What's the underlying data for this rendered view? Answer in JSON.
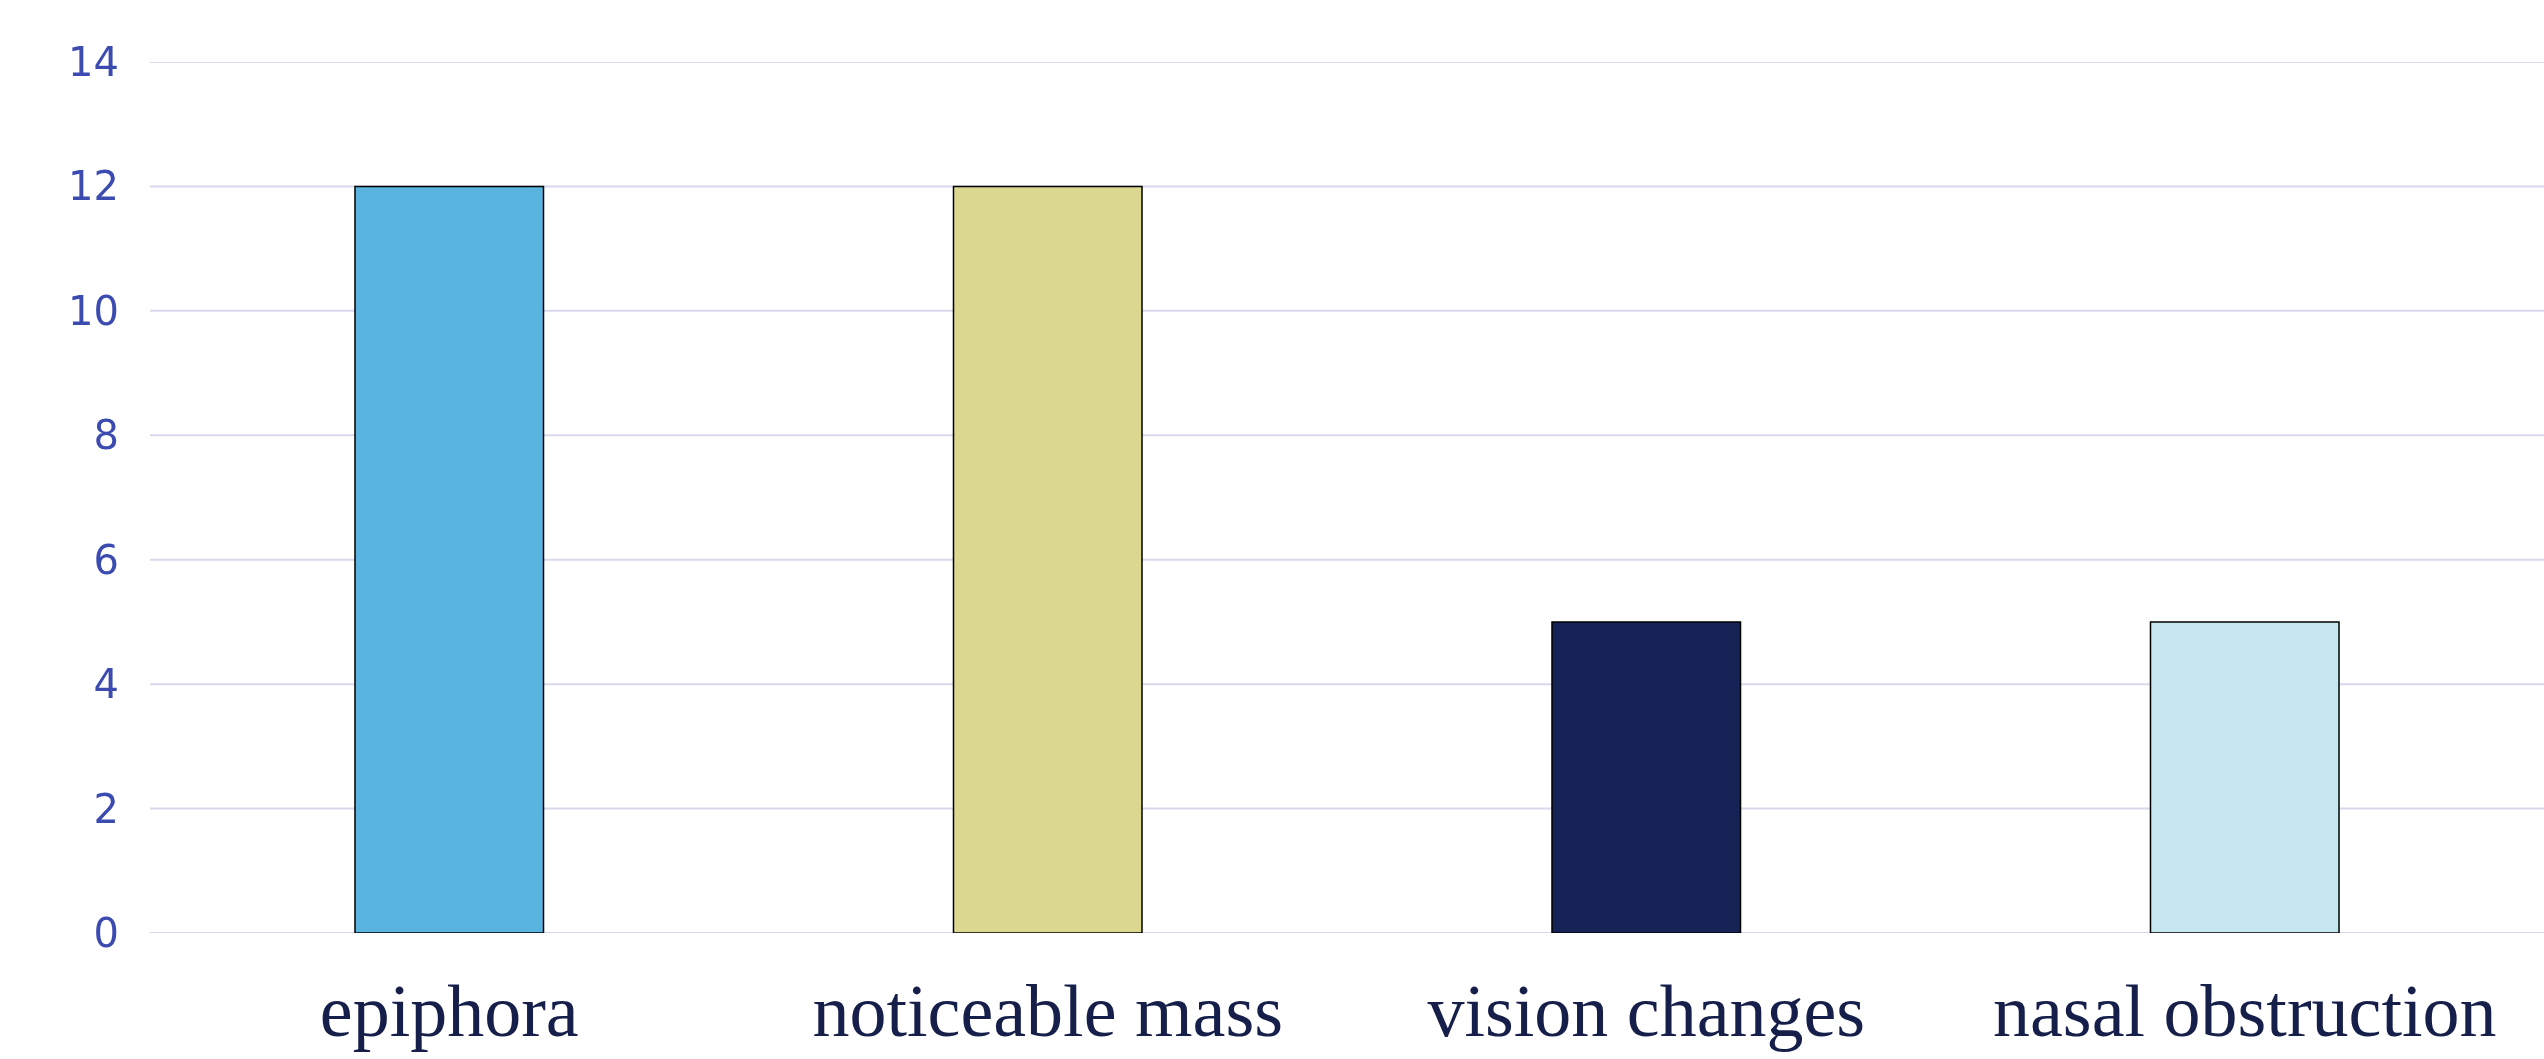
{
  "chart_data": {
    "type": "bar",
    "categories": [
      "epiphora",
      "noticeable mass",
      "vision changes",
      "nasal obstruction"
    ],
    "values": [
      12,
      12,
      5,
      5
    ],
    "colors": [
      "#5ab4e0",
      "#dbd690",
      "#162356",
      "#c6e7ef"
    ],
    "ylim": [
      0,
      14
    ],
    "yticks": [
      0,
      2,
      4,
      6,
      8,
      10,
      12,
      14
    ],
    "grid": "y"
  }
}
